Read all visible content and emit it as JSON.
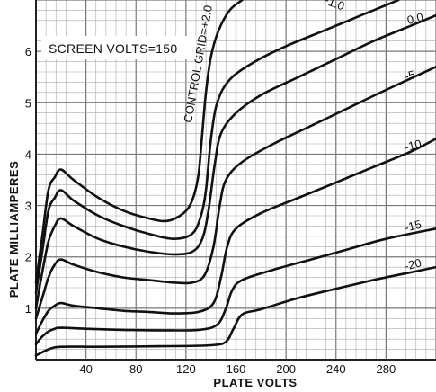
{
  "chart_data": {
    "type": "line",
    "title": "",
    "xlabel": "PLATE VOLTS",
    "ylabel": "PLATE MILLIAMPERES",
    "annotation": "SCREEN VOLTS=150",
    "series_label_prefix": "CONTROL GRID=",
    "xlim": [
      0,
      320
    ],
    "ylim": [
      0,
      7
    ],
    "x_ticks": [
      40,
      80,
      120,
      160,
      200,
      240,
      280
    ],
    "y_ticks": [
      1,
      2,
      3,
      4,
      5,
      6
    ],
    "grid": true,
    "series": [
      {
        "name": "+2.0",
        "points": [
          [
            0,
            1.5
          ],
          [
            5,
            2.4
          ],
          [
            10,
            3.3
          ],
          [
            15,
            3.55
          ],
          [
            20,
            3.7
          ],
          [
            30,
            3.5
          ],
          [
            50,
            3.15
          ],
          [
            70,
            2.9
          ],
          [
            90,
            2.75
          ],
          [
            105,
            2.7
          ],
          [
            118,
            2.85
          ],
          [
            125,
            3.1
          ],
          [
            130,
            3.6
          ],
          [
            133,
            4.4
          ],
          [
            136,
            5.2
          ],
          [
            140,
            5.9
          ],
          [
            146,
            6.4
          ],
          [
            155,
            6.8
          ],
          [
            165,
            7.0
          ]
        ]
      },
      {
        "name": "+1.0",
        "points": [
          [
            0,
            1.3
          ],
          [
            5,
            2.1
          ],
          [
            10,
            2.9
          ],
          [
            15,
            3.15
          ],
          [
            20,
            3.3
          ],
          [
            30,
            3.1
          ],
          [
            50,
            2.8
          ],
          [
            70,
            2.6
          ],
          [
            90,
            2.45
          ],
          [
            110,
            2.35
          ],
          [
            125,
            2.45
          ],
          [
            132,
            2.8
          ],
          [
            136,
            3.3
          ],
          [
            140,
            4.3
          ],
          [
            145,
            5.0
          ],
          [
            155,
            5.45
          ],
          [
            175,
            5.8
          ],
          [
            200,
            6.1
          ],
          [
            230,
            6.4
          ],
          [
            260,
            6.7
          ],
          [
            290,
            7.0
          ]
        ]
      },
      {
        "name": "0.0",
        "points": [
          [
            0,
            1.0
          ],
          [
            5,
            1.7
          ],
          [
            10,
            2.3
          ],
          [
            15,
            2.6
          ],
          [
            20,
            2.75
          ],
          [
            30,
            2.6
          ],
          [
            50,
            2.35
          ],
          [
            70,
            2.2
          ],
          [
            90,
            2.1
          ],
          [
            110,
            2.05
          ],
          [
            125,
            2.1
          ],
          [
            133,
            2.35
          ],
          [
            138,
            2.9
          ],
          [
            143,
            3.8
          ],
          [
            148,
            4.4
          ],
          [
            160,
            4.8
          ],
          [
            180,
            5.15
          ],
          [
            210,
            5.5
          ],
          [
            240,
            5.85
          ],
          [
            270,
            6.2
          ],
          [
            300,
            6.5
          ],
          [
            320,
            6.7
          ]
        ]
      },
      {
        "name": "-5",
        "points": [
          [
            0,
            0.8
          ],
          [
            5,
            1.2
          ],
          [
            10,
            1.6
          ],
          [
            15,
            1.85
          ],
          [
            20,
            1.95
          ],
          [
            30,
            1.85
          ],
          [
            50,
            1.7
          ],
          [
            70,
            1.6
          ],
          [
            90,
            1.55
          ],
          [
            110,
            1.5
          ],
          [
            125,
            1.5
          ],
          [
            135,
            1.65
          ],
          [
            142,
            2.2
          ],
          [
            147,
            3.0
          ],
          [
            152,
            3.5
          ],
          [
            165,
            3.85
          ],
          [
            190,
            4.2
          ],
          [
            220,
            4.55
          ],
          [
            250,
            4.9
          ],
          [
            280,
            5.25
          ],
          [
            320,
            5.7
          ]
        ]
      },
      {
        "name": "-10",
        "points": [
          [
            0,
            0.5
          ],
          [
            5,
            0.75
          ],
          [
            10,
            0.95
          ],
          [
            15,
            1.05
          ],
          [
            20,
            1.1
          ],
          [
            30,
            1.05
          ],
          [
            50,
            1.0
          ],
          [
            70,
            0.95
          ],
          [
            90,
            0.93
          ],
          [
            110,
            0.9
          ],
          [
            130,
            0.93
          ],
          [
            142,
            1.1
          ],
          [
            148,
            1.6
          ],
          [
            153,
            2.2
          ],
          [
            160,
            2.55
          ],
          [
            180,
            2.85
          ],
          [
            210,
            3.15
          ],
          [
            240,
            3.45
          ],
          [
            270,
            3.75
          ],
          [
            300,
            4.05
          ],
          [
            320,
            4.3
          ]
        ]
      },
      {
        "name": "-15",
        "points": [
          [
            0,
            0.3
          ],
          [
            5,
            0.45
          ],
          [
            10,
            0.55
          ],
          [
            15,
            0.6
          ],
          [
            20,
            0.62
          ],
          [
            40,
            0.6
          ],
          [
            70,
            0.58
          ],
          [
            100,
            0.57
          ],
          [
            130,
            0.58
          ],
          [
            145,
            0.68
          ],
          [
            152,
            1.0
          ],
          [
            157,
            1.35
          ],
          [
            165,
            1.55
          ],
          [
            190,
            1.75
          ],
          [
            220,
            1.95
          ],
          [
            250,
            2.15
          ],
          [
            280,
            2.35
          ],
          [
            320,
            2.55
          ]
        ]
      },
      {
        "name": "-20",
        "points": [
          [
            0,
            0.08
          ],
          [
            10,
            0.2
          ],
          [
            20,
            0.25
          ],
          [
            50,
            0.25
          ],
          [
            100,
            0.26
          ],
          [
            140,
            0.28
          ],
          [
            152,
            0.35
          ],
          [
            158,
            0.6
          ],
          [
            165,
            0.88
          ],
          [
            180,
            0.98
          ],
          [
            210,
            1.2
          ],
          [
            240,
            1.38
          ],
          [
            270,
            1.55
          ],
          [
            300,
            1.7
          ],
          [
            320,
            1.8
          ]
        ]
      }
    ]
  }
}
